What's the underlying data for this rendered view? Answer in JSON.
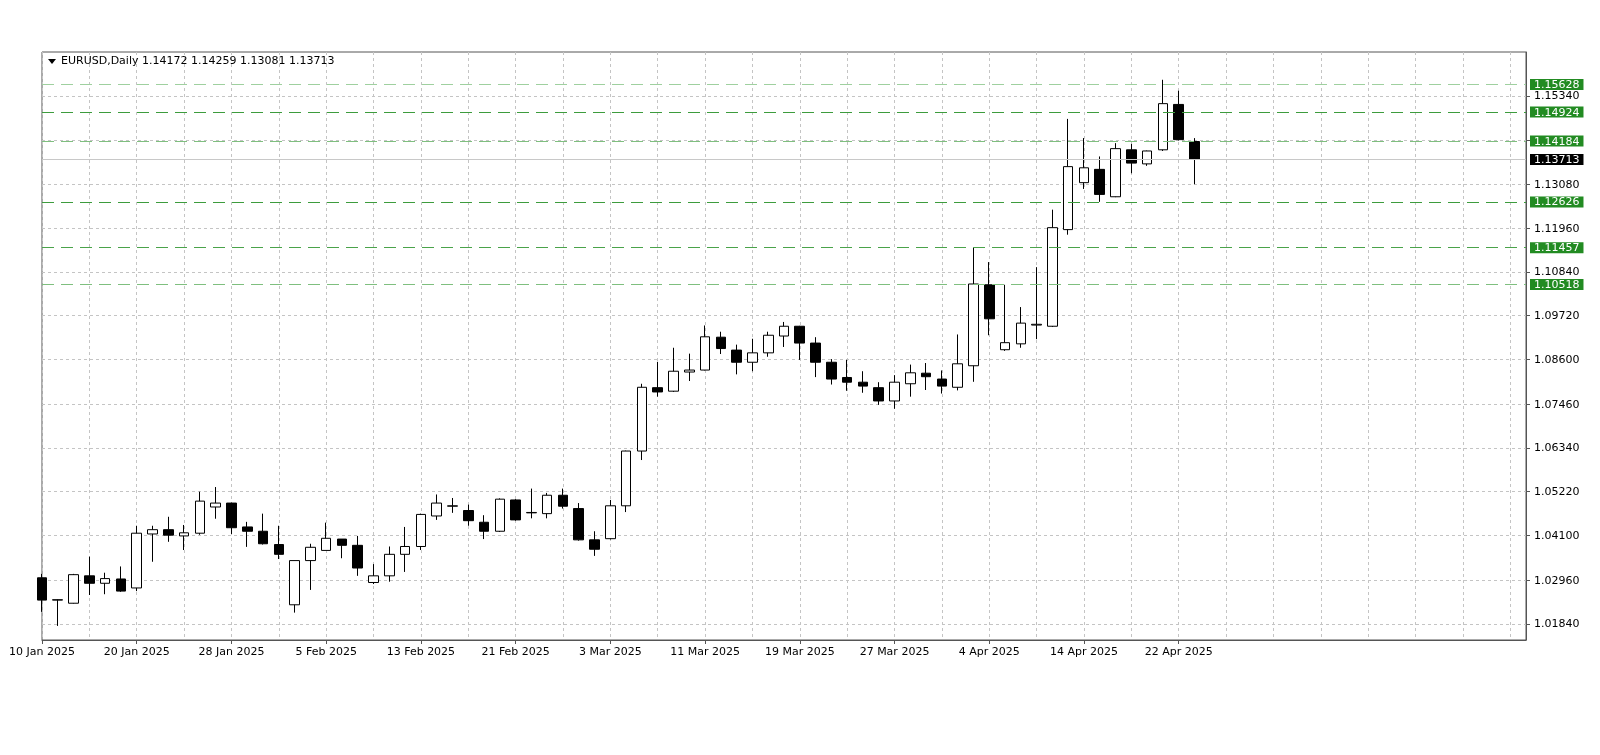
{
  "chart_data": {
    "type": "candlestick",
    "title": "EURUSD,Daily 1.14172 1.14259 1.13081 1.13713",
    "categories": [
      "10 Jan 2025",
      null,
      null,
      null,
      null,
      null,
      "20 Jan 2025",
      null,
      null,
      null,
      null,
      null,
      "28 Jan 2025",
      null,
      null,
      null,
      null,
      null,
      "5 Feb 2025",
      null,
      null,
      null,
      null,
      null,
      "13 Feb 2025",
      null,
      null,
      null,
      null,
      null,
      "21 Feb 2025",
      null,
      null,
      null,
      null,
      null,
      "3 Mar 2025",
      null,
      null,
      null,
      null,
      null,
      "11 Mar 2025",
      null,
      null,
      null,
      null,
      null,
      "19 Mar 2025",
      null,
      null,
      null,
      null,
      null,
      "27 Mar 2025",
      null,
      null,
      null,
      null,
      null,
      "4 Apr 2025",
      null,
      null,
      null,
      null,
      null,
      "14 Apr 2025",
      null,
      null,
      null,
      null,
      null,
      "22 Apr 2025",
      null,
      null,
      null,
      null,
      null,
      null,
      null,
      null,
      null,
      null,
      null,
      null,
      null,
      null,
      null,
      null,
      null,
      null,
      null,
      null,
      null,
      null
    ],
    "ohlc": [
      [
        1.0302,
        1.0312,
        1.0215,
        1.0245
      ],
      [
        1.0245,
        1.0247,
        1.0179,
        1.0246
      ],
      [
        1.0237,
        1.0312,
        1.0236,
        1.031
      ],
      [
        1.0307,
        1.0356,
        1.0258,
        1.0288
      ],
      [
        1.0288,
        1.0315,
        1.026,
        1.03
      ],
      [
        1.0299,
        1.0331,
        1.0266,
        1.0268
      ],
      [
        1.0276,
        1.0435,
        1.0268,
        1.0416
      ],
      [
        1.0414,
        1.0435,
        1.0343,
        1.0425
      ],
      [
        1.0425,
        1.0458,
        1.0394,
        1.0411
      ],
      [
        1.0409,
        1.0437,
        1.0373,
        1.0417
      ],
      [
        1.0416,
        1.0522,
        1.0412,
        1.0498
      ],
      [
        1.0483,
        1.0534,
        1.0453,
        1.0493
      ],
      [
        1.0493,
        1.0494,
        1.0414,
        1.043
      ],
      [
        1.0432,
        1.0445,
        1.0381,
        1.0421
      ],
      [
        1.0421,
        1.0466,
        1.0387,
        1.0389
      ],
      [
        1.0387,
        1.0435,
        1.035,
        1.0362
      ],
      [
        1.0233,
        1.0346,
        1.0213,
        1.0346
      ],
      [
        1.0346,
        1.0389,
        1.0271,
        1.038
      ],
      [
        1.0372,
        1.0443,
        1.0372,
        1.0403
      ],
      [
        1.0401,
        1.0401,
        1.0352,
        1.0385
      ],
      [
        1.0385,
        1.0409,
        1.0307,
        1.0327
      ],
      [
        1.029,
        1.0337,
        1.0286,
        1.0307
      ],
      [
        1.0307,
        1.0382,
        1.0292,
        1.0362
      ],
      [
        1.0362,
        1.0432,
        1.0317,
        1.0382
      ],
      [
        1.0382,
        1.0466,
        1.0373,
        1.0464
      ],
      [
        1.046,
        1.0515,
        1.045,
        1.0493
      ],
      [
        1.0485,
        1.0506,
        1.0468,
        1.0486
      ],
      [
        1.0474,
        1.0489,
        1.0435,
        1.0448
      ],
      [
        1.0444,
        1.0462,
        1.0401,
        1.0421
      ],
      [
        1.0421,
        1.0505,
        1.0419,
        1.0503
      ],
      [
        1.0501,
        1.0503,
        1.0448,
        1.045
      ],
      [
        1.0468,
        1.053,
        1.0454,
        1.0469
      ],
      [
        1.0466,
        1.0519,
        1.0454,
        1.0513
      ],
      [
        1.0513,
        1.053,
        1.0479,
        1.0485
      ],
      [
        1.0479,
        1.0493,
        1.0397,
        1.0399
      ],
      [
        1.0399,
        1.0421,
        1.0358,
        1.0375
      ],
      [
        1.0402,
        1.0501,
        1.04,
        1.0486
      ],
      [
        1.0486,
        1.0627,
        1.047,
        1.0626
      ],
      [
        1.0626,
        1.0798,
        1.0603,
        1.0789
      ],
      [
        1.0788,
        1.0854,
        1.0765,
        1.0777
      ],
      [
        1.0779,
        1.089,
        1.0777,
        1.083
      ],
      [
        1.0828,
        1.0875,
        1.0805,
        1.0833
      ],
      [
        1.0833,
        1.0947,
        1.0832,
        1.0918
      ],
      [
        1.0917,
        1.0931,
        1.0874,
        1.0888
      ],
      [
        1.0884,
        1.0898,
        1.0822,
        1.0853
      ],
      [
        1.0853,
        1.0913,
        1.083,
        1.0877
      ],
      [
        1.0877,
        1.0931,
        1.0867,
        1.0922
      ],
      [
        1.092,
        1.0956,
        1.0892,
        1.0945
      ],
      [
        1.0945,
        1.0946,
        1.0859,
        1.0902
      ],
      [
        1.0902,
        1.0917,
        1.0815,
        1.0853
      ],
      [
        1.0853,
        1.0861,
        1.0796,
        1.081
      ],
      [
        1.0814,
        1.0859,
        1.078,
        1.0802
      ],
      [
        1.0802,
        1.083,
        1.0775,
        1.0792
      ],
      [
        1.0788,
        1.0802,
        1.0744,
        1.0754
      ],
      [
        1.0754,
        1.082,
        1.0734,
        1.0802
      ],
      [
        1.0798,
        1.0847,
        1.0765,
        1.0826
      ],
      [
        1.0825,
        1.0851,
        1.0782,
        1.0816
      ],
      [
        1.081,
        1.0832,
        1.0773,
        1.0792
      ],
      [
        1.0789,
        1.0924,
        1.0781,
        1.0849
      ],
      [
        1.0844,
        1.1145,
        1.0803,
        1.1053
      ],
      [
        1.1051,
        1.1109,
        1.0922,
        1.0964
      ],
      [
        1.0885,
        1.1051,
        1.0882,
        1.0903
      ],
      [
        1.09,
        1.0994,
        1.089,
        1.0953
      ],
      [
        1.0948,
        1.1096,
        1.0912,
        1.095
      ],
      [
        1.0945,
        1.1243,
        1.0943,
        1.1197
      ],
      [
        1.1192,
        1.1475,
        1.1179,
        1.1353
      ],
      [
        1.1312,
        1.1426,
        1.1296,
        1.135
      ],
      [
        1.1346,
        1.1379,
        1.1263,
        1.1282
      ],
      [
        1.1276,
        1.1413,
        1.1275,
        1.1399
      ],
      [
        1.1396,
        1.1411,
        1.1336,
        1.1362
      ],
      [
        1.136,
        1.1394,
        1.1355,
        1.1393
      ],
      [
        1.1396,
        1.1575,
        1.1393,
        1.1514
      ],
      [
        1.1512,
        1.1547,
        1.142,
        1.1422
      ],
      [
        1.14172,
        1.14259,
        1.13081,
        1.13713
      ],
      null,
      null,
      null,
      null,
      null,
      null,
      null,
      null,
      null,
      null,
      null,
      null,
      null,
      null,
      null,
      null,
      null,
      null,
      null,
      null,
      null
    ],
    "ylim": [
      1.0143,
      1.1646
    ],
    "yticks": [
      {
        "value": 1.0184,
        "label": "1.01840"
      },
      {
        "value": 1.0296,
        "label": "1.02960"
      },
      {
        "value": 1.041,
        "label": "1.04100"
      },
      {
        "value": 1.0522,
        "label": "1.05220"
      },
      {
        "value": 1.0634,
        "label": "1.06340"
      },
      {
        "value": 1.0746,
        "label": "1.07460"
      },
      {
        "value": 1.086,
        "label": "1.08600"
      },
      {
        "value": 1.0972,
        "label": "1.09720"
      },
      {
        "value": 1.1084,
        "label": "1.10840"
      },
      {
        "value": 1.1196,
        "label": "1.11960"
      },
      {
        "value": 1.1308,
        "label": "1.13080"
      },
      {
        "value": 1.142,
        "label": null
      },
      {
        "value": 1.1534,
        "label": "1.15340"
      }
    ],
    "ref_lines": [
      {
        "axis": "y",
        "value": 1.15628,
        "label": "1.15628",
        "color": "#9fd09f",
        "line_style": "dashed"
      },
      {
        "axis": "y",
        "value": 1.14924,
        "label": "1.14924",
        "color": "#3d9c3d",
        "line_style": "dashed"
      },
      {
        "axis": "y",
        "value": 1.14184,
        "label": "1.14184",
        "color": "#7fbf7f",
        "line_style": "dashed"
      },
      {
        "axis": "y",
        "value": 1.13713,
        "label": "1.13713",
        "color": "#c8c8c8",
        "line_style": "solid"
      },
      {
        "axis": "y",
        "value": 1.12626,
        "label": "1.12626",
        "color": "#3d9c3d",
        "line_style": "dashed"
      },
      {
        "axis": "y",
        "value": 1.11457,
        "label": "1.11457",
        "color": "#4aa34a",
        "line_style": "dashed"
      },
      {
        "axis": "y",
        "value": 1.10518,
        "label": "1.10518",
        "color": "#7fbf7f",
        "line_style": "dashed"
      }
    ],
    "grid": true
  }
}
